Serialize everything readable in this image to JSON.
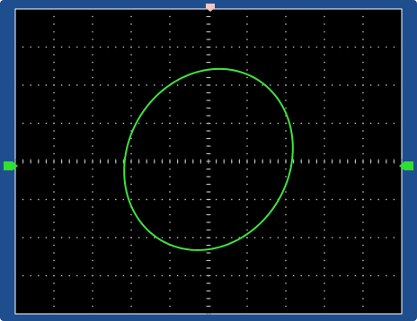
{
  "colors": {
    "bezel": "#1f4e8f",
    "screen_background": "#000000",
    "grid": "#bfbfbf",
    "trace": "#3fe23f",
    "trigger_marker": "#f0c8c8",
    "level_marker": "#2fe02f"
  },
  "icons": {
    "trigger_position_marker": "trigger-position-marker-icon",
    "ch1_ground_marker": "ch1-ground-marker-icon",
    "trigger_level_marker": "trigger-level-marker-icon"
  },
  "display": {
    "mode": "XY",
    "grid": {
      "divisions_x": 10,
      "divisions_y": 8,
      "minor_per_division": 5
    }
  },
  "chart_data": {
    "type": "scatter",
    "grid": true,
    "series": [
      {
        "shape": "ellipse",
        "center": [
          0,
          0.05
        ],
        "semi_major_axis_div": 2.45,
        "semi_minor_axis_div": 2.1,
        "tilt_degrees": 62
      }
    ],
    "xlim": [
      -5,
      5
    ],
    "ylim": [
      -4,
      4
    ]
  }
}
